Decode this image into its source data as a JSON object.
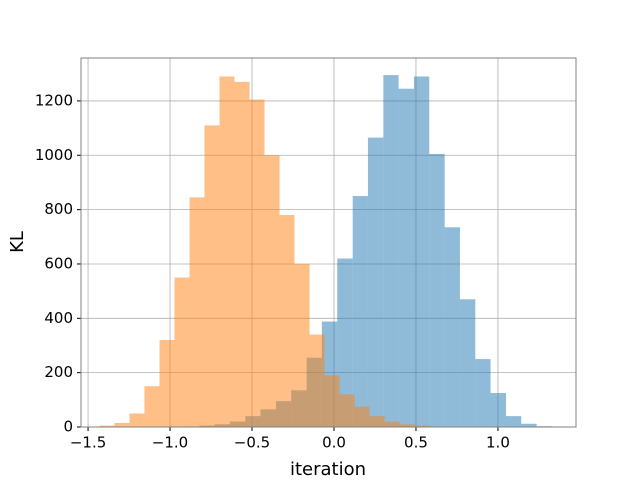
{
  "chart_data": {
    "type": "histogram",
    "xlabel": "iteration",
    "ylabel": "KL",
    "series": [
      {
        "color": "#1f77b4",
        "bins": [
          -0.915,
          -0.822,
          -0.728,
          -0.635,
          -0.541,
          -0.448,
          -0.354,
          -0.261,
          -0.167,
          -0.074,
          0.02,
          0.114,
          0.207,
          0.301,
          0.394,
          0.488,
          0.581,
          0.675,
          0.768,
          0.862,
          0.955,
          1.049,
          1.142,
          1.236,
          1.329
        ],
        "values": [
          2,
          5,
          10,
          20,
          40,
          65,
          95,
          135,
          255,
          388,
          620,
          850,
          1065,
          1295,
          1245,
          1290,
          1005,
          735,
          470,
          250,
          125,
          40,
          12,
          3
        ]
      },
      {
        "color": "#ff7f0e",
        "bins": [
          -1.43,
          -1.339,
          -1.247,
          -1.156,
          -1.064,
          -0.973,
          -0.881,
          -0.79,
          -0.698,
          -0.607,
          -0.515,
          -0.424,
          -0.332,
          -0.241,
          -0.149,
          -0.058,
          0.034,
          0.126,
          0.217,
          0.309,
          0.4,
          0.492,
          0.583
        ],
        "values": [
          5,
          15,
          50,
          150,
          320,
          550,
          845,
          1110,
          1290,
          1270,
          1205,
          1000,
          780,
          600,
          340,
          190,
          120,
          75,
          40,
          20,
          10,
          5
        ]
      }
    ],
    "opacity": 0.5,
    "xlim": [
      -1.543,
      1.476
    ],
    "xticks": [
      {
        "value": -1.5,
        "label": "−1.5"
      },
      {
        "value": -1.0,
        "label": "−1.0"
      },
      {
        "value": -0.5,
        "label": "−0.5"
      },
      {
        "value": 0,
        "label": "0.0"
      },
      {
        "value": 0.5,
        "label": "0.5"
      },
      {
        "value": 1.0,
        "label": "1.0"
      }
    ],
    "ylim": [
      0,
      1358
    ],
    "yticks": [
      0,
      200,
      400,
      600,
      800,
      1000,
      1200
    ],
    "grid": true
  }
}
